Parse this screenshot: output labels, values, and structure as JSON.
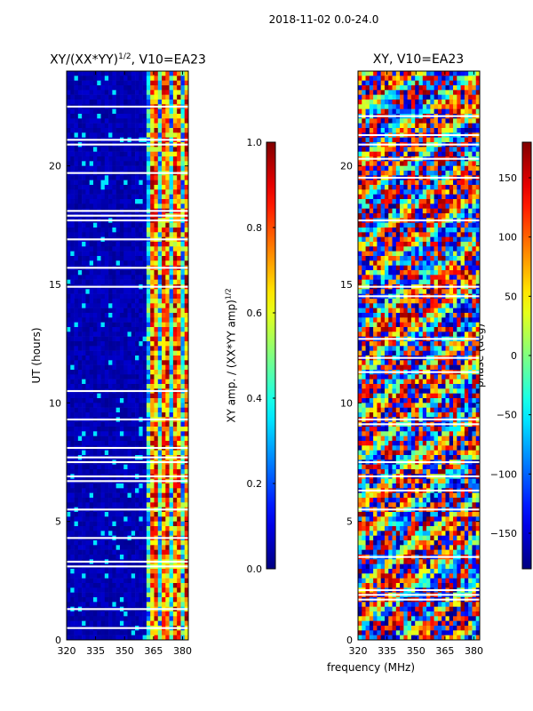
{
  "suptitle": "2018-11-02 0.0-24.0",
  "xlabel": "frequency (MHz)",
  "ylabel": "UT (hours)",
  "chart_data": [
    {
      "type": "heatmap",
      "title_main": "XY/(XX*YY)",
      "title_sup": "1/2",
      "title_rest": ", V10=EA23",
      "x_ticks": [
        320,
        335,
        350,
        365,
        380
      ],
      "x_tick_labels": [
        "320",
        "335",
        "350",
        "365",
        "380"
      ],
      "xlim": [
        320,
        383
      ],
      "y_ticks": [
        0,
        5,
        10,
        15,
        20
      ],
      "y_tick_labels": [
        "0",
        "5",
        "10",
        "15",
        "20"
      ],
      "ylim": [
        0,
        24
      ],
      "colorbar": {
        "label": "XY amp. / (XX*YY amp)",
        "label_sup": "1/2",
        "range": [
          0.0,
          1.0
        ],
        "ticks": [
          0.0,
          0.2,
          0.4,
          0.6,
          0.8,
          1.0
        ],
        "tick_labels": [
          "0.0",
          "0.2",
          "0.4",
          "0.6",
          "0.8",
          "1.0"
        ]
      },
      "colormap": "jet"
    },
    {
      "type": "heatmap",
      "title": "XY, V10=EA23",
      "x_ticks": [
        320,
        335,
        350,
        365,
        380
      ],
      "x_tick_labels": [
        "320",
        "335",
        "350",
        "365",
        "380"
      ],
      "xlim": [
        320,
        383
      ],
      "y_ticks": [
        0,
        5,
        10,
        15,
        20
      ],
      "y_tick_labels": [
        "0",
        "5",
        "10",
        "15",
        "20"
      ],
      "ylim": [
        0,
        24
      ],
      "colorbar": {
        "label": "phase (deg)",
        "range": [
          -180,
          180
        ],
        "ticks": [
          -150,
          -100,
          -50,
          0,
          50,
          100,
          150
        ],
        "tick_labels": [
          "−150",
          "−100",
          "−50",
          "0",
          "50",
          "100",
          "150"
        ]
      },
      "colormap": "jet"
    }
  ]
}
